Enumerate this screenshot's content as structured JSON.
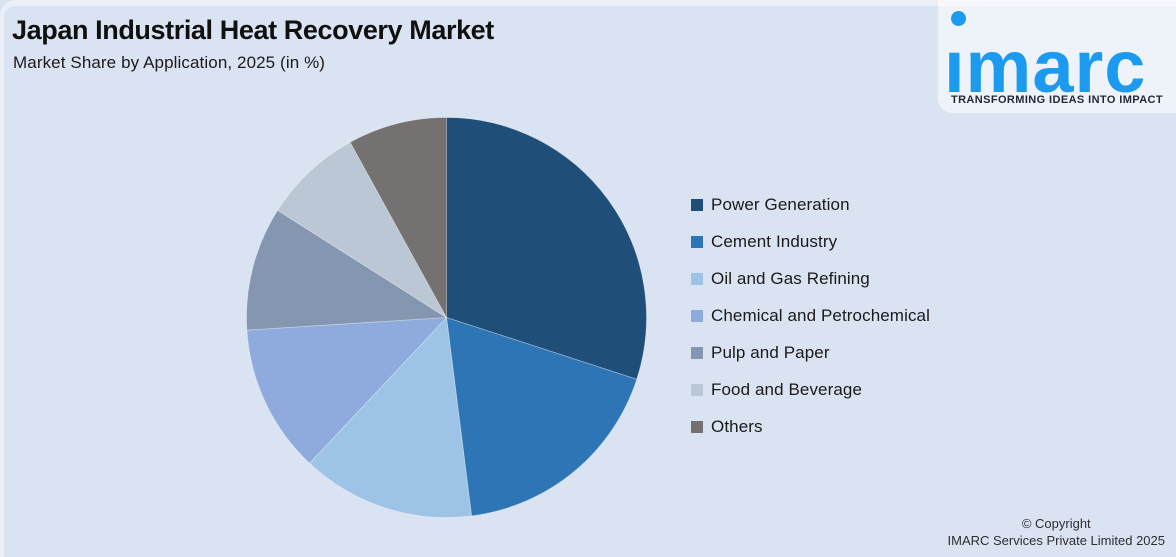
{
  "header": {
    "title": "Japan Industrial Heat Recovery Market",
    "subtitle": "Market Share by Application, 2025 (in %)"
  },
  "logo": {
    "wordmark": "imarc",
    "tagline": "TRANSFORMING IDEAS INTO IMPACT",
    "brand_color": "#1b9af0"
  },
  "footer": {
    "copyright_line1": "© Copyright",
    "copyright_line2": "IMARC Services Private Limited 2025"
  },
  "colors": {
    "background": "#dae3f2",
    "frame_highlight": "#ebeff8",
    "text": "#1a1a1a"
  },
  "chart_data": {
    "type": "pie",
    "title": "Japan Industrial Heat Recovery Market",
    "subtitle": "Market Share by Application, 2025 (in %)",
    "unit": "%",
    "start_angle_deg": 0,
    "direction": "clockwise",
    "legend_position": "right",
    "data_labels": false,
    "series": [
      {
        "label": "Power Generation",
        "value": 30,
        "color": "#1f4e79"
      },
      {
        "label": "Cement Industry",
        "value": 18,
        "color": "#2e75b6"
      },
      {
        "label": "Oil and Gas Refining",
        "value": 14,
        "color": "#9dc3e6"
      },
      {
        "label": "Chemical and Petrochemical",
        "value": 12,
        "color": "#8faadc"
      },
      {
        "label": "Pulp and Paper",
        "value": 10,
        "color": "#8496b0"
      },
      {
        "label": "Food and Beverage",
        "value": 8,
        "color": "#bcc7d5"
      },
      {
        "label": "Others",
        "value": 8,
        "color": "#767171"
      }
    ]
  }
}
